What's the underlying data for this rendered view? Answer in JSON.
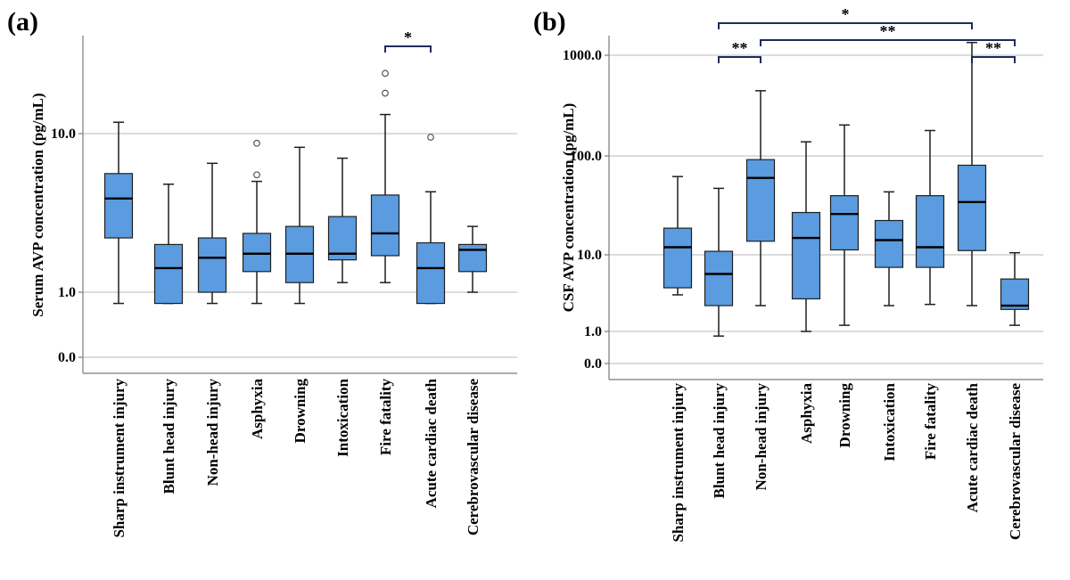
{
  "chart_data": [
    {
      "panel": "(a)",
      "type": "box",
      "ylabel": "Serum AVP concentration (pg/mL)",
      "yscale": "log",
      "yticks": [
        "0.0",
        "1.0",
        "10.0"
      ],
      "categories": [
        "Sharp instrument injury",
        "Blunt head injury",
        "Non-head injury",
        "Asphyxia",
        "Drowning",
        "Intoxication",
        "Fire fatality",
        "Acute cardiac death",
        "Cerebrovascular disease"
      ],
      "boxes": [
        {
          "min": 0.85,
          "q1": 2.2,
          "median": 3.9,
          "q3": 5.6,
          "max": 11.8,
          "outliers": []
        },
        {
          "min": 0.85,
          "q1": 0.85,
          "median": 1.42,
          "q3": 2.0,
          "max": 4.8,
          "outliers": []
        },
        {
          "min": 0.85,
          "q1": 1.0,
          "median": 1.65,
          "q3": 2.2,
          "max": 6.5,
          "outliers": []
        },
        {
          "min": 0.85,
          "q1": 1.35,
          "median": 1.75,
          "q3": 2.35,
          "max": 5.0,
          "outliers": [
            5.5,
            8.7
          ]
        },
        {
          "min": 0.85,
          "q1": 1.15,
          "median": 1.75,
          "q3": 2.6,
          "max": 8.2,
          "outliers": []
        },
        {
          "min": 1.15,
          "q1": 1.6,
          "median": 1.75,
          "q3": 3.0,
          "max": 7.0,
          "outliers": []
        },
        {
          "min": 1.15,
          "q1": 1.7,
          "median": 2.35,
          "q3": 4.1,
          "max": 13.2,
          "outliers": [
            18.0,
            24.0
          ]
        },
        {
          "min": 0.85,
          "q1": 0.85,
          "median": 1.42,
          "q3": 2.05,
          "max": 4.3,
          "outliers": [
            9.5
          ]
        },
        {
          "min": 1.0,
          "q1": 1.35,
          "median": 1.85,
          "q3": 2.0,
          "max": 2.6,
          "outliers": []
        }
      ],
      "significance": [
        {
          "from": 6,
          "to": 7,
          "label": "*"
        }
      ]
    },
    {
      "panel": "(b)",
      "type": "box",
      "ylabel": "CSF AVP concentration (pg/mL)",
      "yscale": "log",
      "yticks": [
        "0.0",
        "1.0",
        "10.0",
        "100.0",
        "1000.0"
      ],
      "categories": [
        "Sharp instrument injury",
        "Blunt head injury",
        "Non-head injury",
        "Asphyxia",
        "Drowning",
        "Intoxication",
        "Fire fatality",
        "Acute cardiac death",
        "Cerebrovascular disease"
      ],
      "boxes": [
        {
          "min": 2.3,
          "q1": 2.7,
          "median": 6.8,
          "q3": 10.5,
          "max": 34.0,
          "outliers": []
        },
        {
          "min": 0.9,
          "q1": 1.8,
          "median": 3.7,
          "q3": 6.2,
          "max": 26.0,
          "outliers": []
        },
        {
          "min": 1.8,
          "q1": 7.8,
          "median": 33.0,
          "q3": 50.0,
          "max": 240.0,
          "outliers": []
        },
        {
          "min": 1.0,
          "q1": 2.1,
          "median": 8.4,
          "q3": 15.0,
          "max": 75.0,
          "outliers": []
        },
        {
          "min": 1.15,
          "q1": 6.4,
          "median": 14.5,
          "q3": 22.0,
          "max": 110.0,
          "outliers": []
        },
        {
          "min": 1.8,
          "q1": 4.3,
          "median": 8.0,
          "q3": 12.5,
          "max": 24.0,
          "outliers": []
        },
        {
          "min": 1.85,
          "q1": 4.3,
          "median": 6.8,
          "q3": 22.0,
          "max": 97.0,
          "outliers": []
        },
        {
          "min": 1.8,
          "q1": 6.3,
          "median": 19.0,
          "q3": 44.0,
          "max": 720.0,
          "outliers": []
        },
        {
          "min": 1.15,
          "q1": 1.65,
          "median": 1.8,
          "q3": 3.3,
          "max": 6.0,
          "outliers": []
        }
      ],
      "significance": [
        {
          "from": 1,
          "to": 7,
          "label": "*"
        },
        {
          "from": 2,
          "to": 8,
          "label": "**"
        },
        {
          "from": 1,
          "to": 2,
          "label": "**"
        },
        {
          "from": 7,
          "to": 8,
          "label": "**"
        }
      ]
    }
  ]
}
